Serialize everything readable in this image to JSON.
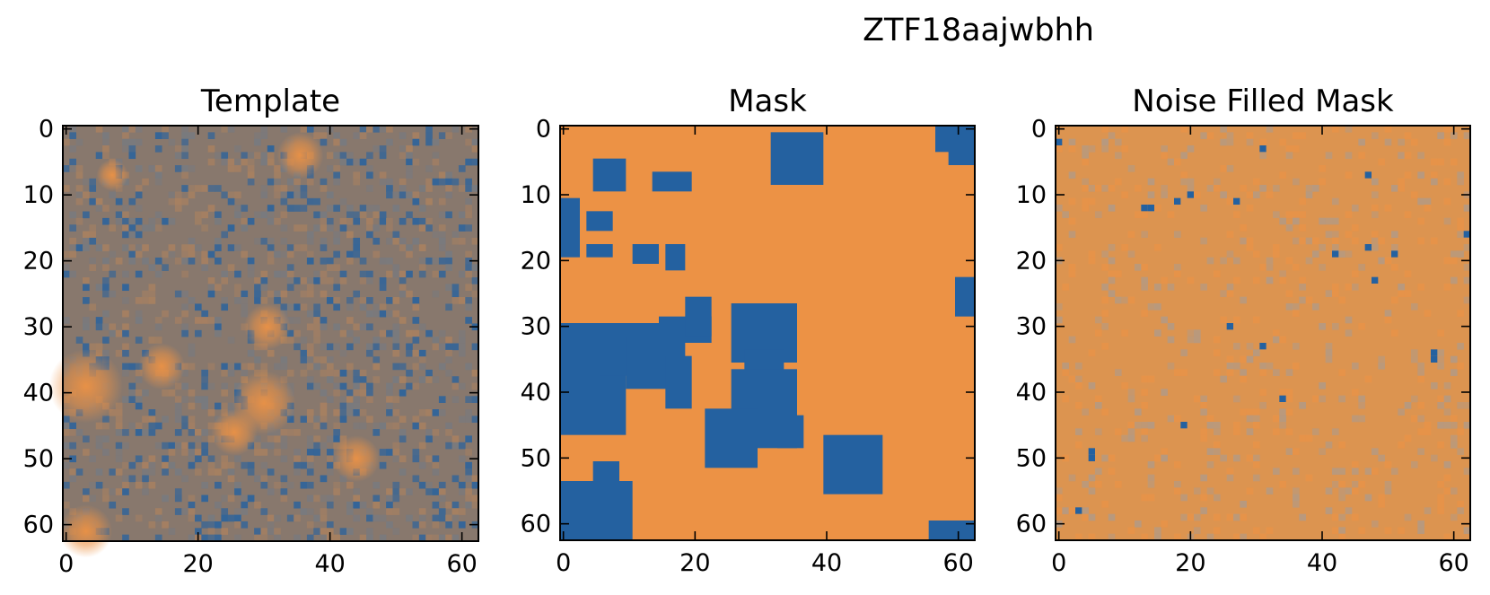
{
  "figure": {
    "title": "ZTF18aajwbhh"
  },
  "colors": {
    "orange": "#ec9245",
    "blue": "#2461a0",
    "template_base": "#88786d",
    "noise_base": "#dc9450"
  },
  "chart_data": [
    {
      "type": "heatmap",
      "title": "Template",
      "grid_size": [
        63,
        63
      ],
      "xlim": [
        -0.5,
        62.5
      ],
      "ylim": [
        62.5,
        -0.5
      ],
      "xticks": [
        0,
        20,
        40,
        60
      ],
      "yticks": [
        0,
        10,
        20,
        30,
        40,
        50,
        60
      ],
      "xtick_labels": [
        "0",
        "20",
        "40",
        "60"
      ],
      "ytick_labels": [
        "0",
        "10",
        "20",
        "30",
        "40",
        "50",
        "60"
      ],
      "xlabel": "",
      "ylabel": "",
      "grid": false,
      "colormap": "blue-orange",
      "bright_sources": [
        {
          "x": 3,
          "y": 39,
          "radius": 3.5
        },
        {
          "x": 35.5,
          "y": 4,
          "radius": 2.2
        },
        {
          "x": 30.5,
          "y": 30,
          "radius": 2.2
        },
        {
          "x": 14.5,
          "y": 36,
          "radius": 2.2
        },
        {
          "x": 30,
          "y": 41.5,
          "radius": 3
        },
        {
          "x": 25.5,
          "y": 46,
          "radius": 2.2
        },
        {
          "x": 44,
          "y": 50,
          "radius": 2.2
        },
        {
          "x": 3,
          "y": 61,
          "radius": 2.5
        },
        {
          "x": 7,
          "y": 7,
          "radius": 1.5
        }
      ]
    },
    {
      "type": "heatmap",
      "title": "Mask",
      "grid_size": [
        63,
        63
      ],
      "xlim": [
        -0.5,
        62.5
      ],
      "ylim": [
        62.5,
        -0.5
      ],
      "xticks": [
        0,
        20,
        40,
        60
      ],
      "yticks": [
        0,
        10,
        20,
        30,
        40,
        50,
        60
      ],
      "xtick_labels": [
        "0",
        "20",
        "40",
        "60"
      ],
      "ytick_labels": [
        "0",
        "10",
        "20",
        "30",
        "40",
        "50",
        "60"
      ],
      "xlabel": "",
      "ylabel": "",
      "grid": false,
      "values": "binary",
      "masked_regions": [
        {
          "x0": 0,
          "x1": 9,
          "y0": 30,
          "y1": 46
        },
        {
          "x0": 6,
          "x1": 14,
          "y0": 30,
          "y1": 37
        },
        {
          "x0": 10,
          "x1": 18,
          "y0": 32,
          "y1": 39
        },
        {
          "x0": 16,
          "x1": 19,
          "y0": 35,
          "y1": 42
        },
        {
          "x0": 15,
          "x1": 22,
          "y0": 29,
          "y1": 32
        },
        {
          "x0": 19,
          "x1": 22,
          "y0": 26,
          "y1": 31
        },
        {
          "x0": 26,
          "x1": 35,
          "y0": 27,
          "y1": 35
        },
        {
          "x0": 28,
          "x1": 33,
          "y0": 34,
          "y1": 37
        },
        {
          "x0": 26,
          "x1": 35,
          "y0": 37,
          "y1": 48
        },
        {
          "x0": 22,
          "x1": 29,
          "y0": 43,
          "y1": 51
        },
        {
          "x0": 33,
          "x1": 36,
          "y0": 44,
          "y1": 48
        },
        {
          "x0": 40,
          "x1": 48,
          "y0": 47,
          "y1": 55
        },
        {
          "x0": 0,
          "x1": 10,
          "y0": 54,
          "y1": 62
        },
        {
          "x0": 5,
          "x1": 8,
          "y0": 51,
          "y1": 54
        },
        {
          "x0": 32,
          "x1": 39,
          "y0": 1,
          "y1": 8
        },
        {
          "x0": 57,
          "x1": 62,
          "y0": 0,
          "y1": 3
        },
        {
          "x0": 59,
          "x1": 62,
          "y0": 3,
          "y1": 5
        },
        {
          "x0": 5,
          "x1": 9,
          "y0": 5,
          "y1": 9
        },
        {
          "x0": 14,
          "x1": 19,
          "y0": 7,
          "y1": 9
        },
        {
          "x0": 0,
          "x1": 2,
          "y0": 11,
          "y1": 14
        },
        {
          "x0": 4,
          "x1": 7,
          "y0": 13,
          "y1": 15
        },
        {
          "x0": 0,
          "x1": 2,
          "y0": 15,
          "y1": 19
        },
        {
          "x0": 4,
          "x1": 7,
          "y0": 18,
          "y1": 19
        },
        {
          "x0": 11,
          "x1": 14,
          "y0": 18,
          "y1": 20
        },
        {
          "x0": 16,
          "x1": 18,
          "y0": 18,
          "y1": 21
        },
        {
          "x0": 60,
          "x1": 62,
          "y0": 23,
          "y1": 28
        },
        {
          "x0": 56,
          "x1": 62,
          "y0": 60,
          "y1": 62
        }
      ]
    },
    {
      "type": "heatmap",
      "title": "Noise Filled Mask",
      "grid_size": [
        63,
        63
      ],
      "xlim": [
        -0.5,
        62.5
      ],
      "ylim": [
        62.5,
        -0.5
      ],
      "xticks": [
        0,
        20,
        40,
        60
      ],
      "yticks": [
        0,
        10,
        20,
        30,
        40,
        50,
        60
      ],
      "xtick_labels": [
        "0",
        "20",
        "40",
        "60"
      ],
      "ytick_labels": [
        "0",
        "10",
        "20",
        "30",
        "40",
        "50",
        "60"
      ],
      "xlabel": "",
      "ylabel": "",
      "grid": false,
      "colormap": "blue-orange",
      "blue_pixels": [
        [
          0,
          2
        ],
        [
          31,
          3
        ],
        [
          47,
          7
        ],
        [
          13,
          12
        ],
        [
          14,
          12
        ],
        [
          18,
          11
        ],
        [
          20,
          10
        ],
        [
          27,
          11
        ],
        [
          62,
          16
        ],
        [
          42,
          19
        ],
        [
          47,
          18
        ],
        [
          51,
          19
        ],
        [
          48,
          23
        ],
        [
          26,
          30
        ],
        [
          31,
          33
        ],
        [
          57,
          34
        ],
        [
          57,
          35
        ],
        [
          34,
          41
        ],
        [
          19,
          45
        ],
        [
          5,
          49
        ],
        [
          5,
          50
        ],
        [
          3,
          58
        ]
      ]
    }
  ]
}
